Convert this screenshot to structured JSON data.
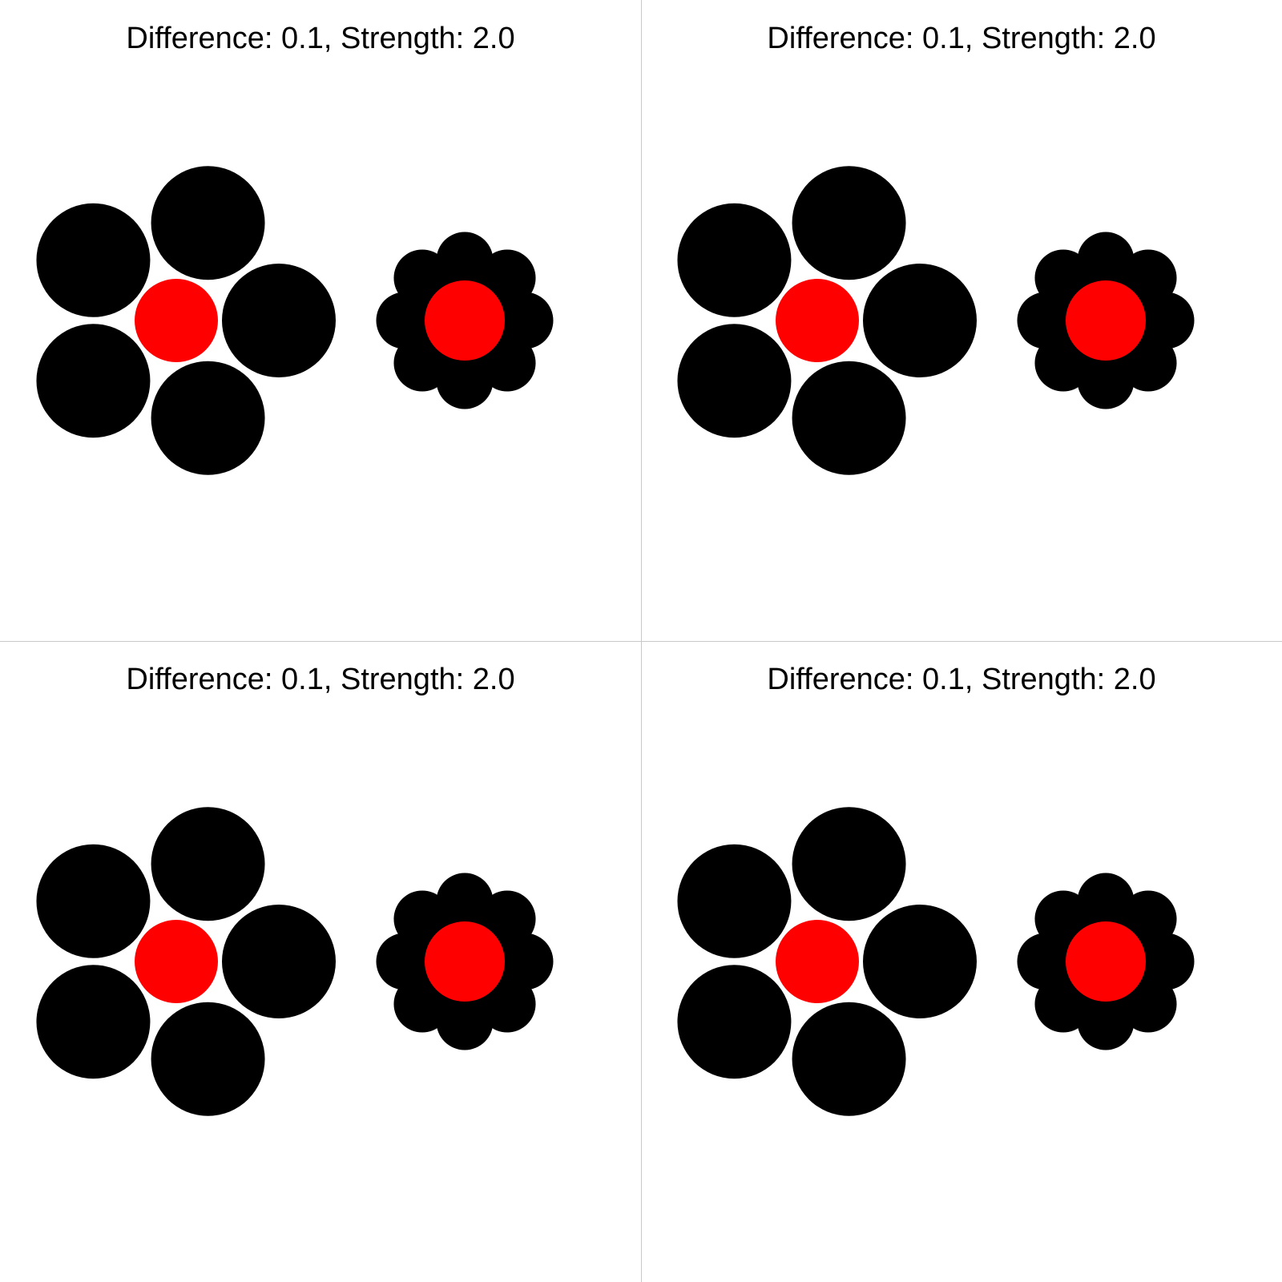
{
  "colors": {
    "background": "#ffffff",
    "target": "#ff0000",
    "inducer": "#000000",
    "divider": "#c8c8c8"
  },
  "panels": [
    {
      "title": "Difference: 0.1, Strength: 2.0",
      "difference": 0.1,
      "strength": 2.0
    },
    {
      "title": "Difference: 0.1, Strength: 2.0",
      "difference": 0.1,
      "strength": 2.0
    },
    {
      "title": "Difference: 0.1, Strength: 2.0",
      "difference": 0.1,
      "strength": 2.0
    },
    {
      "title": "Difference: 0.1, Strength: 2.0",
      "difference": 0.1,
      "strength": 2.0
    }
  ]
}
